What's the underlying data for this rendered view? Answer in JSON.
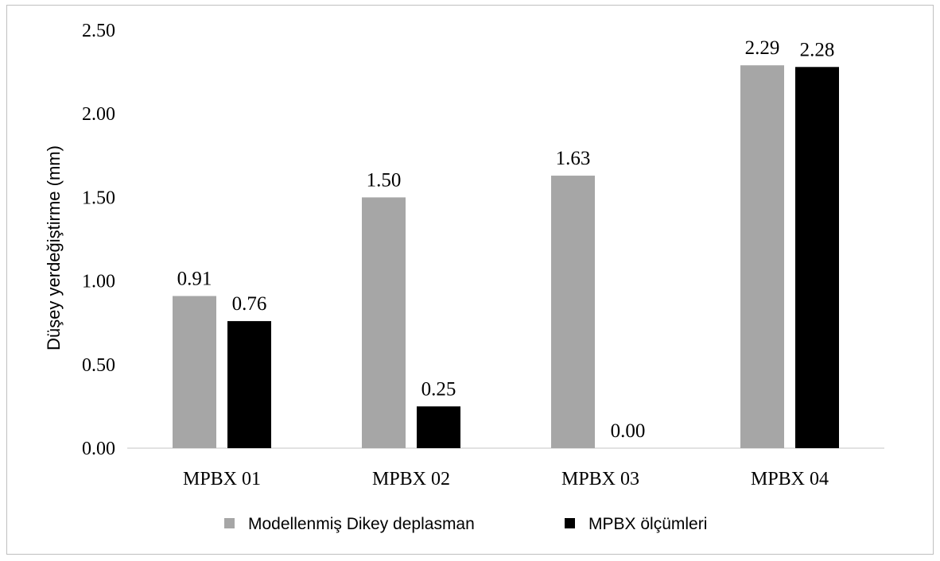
{
  "chart_data": {
    "type": "bar",
    "title": "",
    "xlabel": "",
    "ylabel": "Düşey yerdeğiştirme (mm)",
    "ylim": [
      0,
      2.5
    ],
    "yticks": [
      "0.00",
      "0.50",
      "1.00",
      "1.50",
      "2.00",
      "2.50"
    ],
    "ytick_values": [
      0,
      0.5,
      1,
      1.5,
      2,
      2.5
    ],
    "grid": false,
    "legend_position": "bottom",
    "categories": [
      "MPBX 01",
      "MPBX 02",
      "MPBX 03",
      "MPBX 04"
    ],
    "series": [
      {
        "name": "Modellenmiş  Dikey deplasman",
        "color": "#a6a6a6",
        "values": [
          0.91,
          1.5,
          1.63,
          2.29
        ],
        "labels": [
          "0.91",
          "1.50",
          "1.63",
          "2.29"
        ]
      },
      {
        "name": "MPBX ölçümleri",
        "color": "#000000",
        "values": [
          0.76,
          0.25,
          0.0,
          2.28
        ],
        "labels": [
          "0.76",
          "0.25",
          "0.00",
          "2.28"
        ]
      }
    ]
  }
}
